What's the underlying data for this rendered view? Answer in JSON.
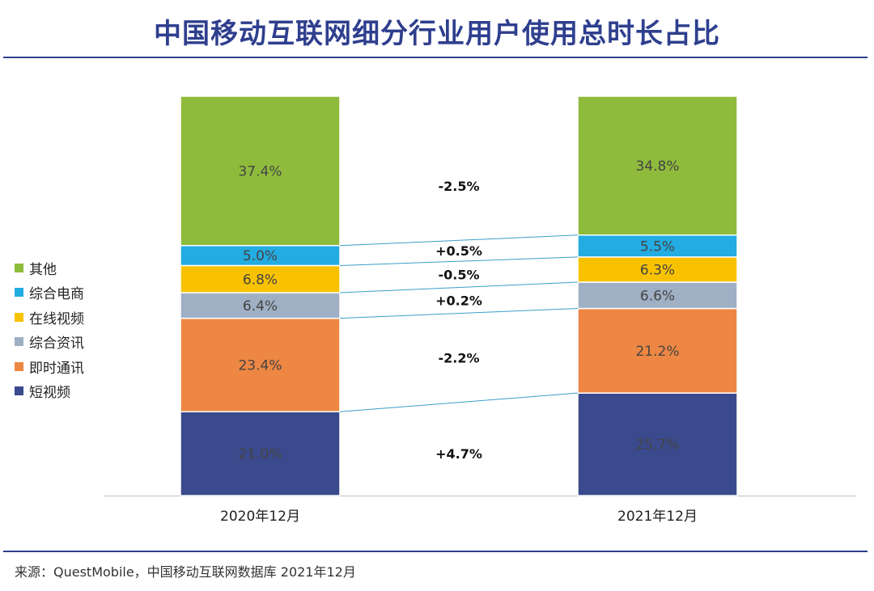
{
  "title": "中国移动互联网细分行业用户使用总时长占比",
  "source": "来源：QuestMobile，中国移动互联网数据库  2021年12月",
  "legend_order": [
    "其他",
    "综合电商",
    "在线视频",
    "综合资讯",
    "即时通讯",
    "短视频"
  ],
  "chart_data": {
    "type": "bar",
    "stacked": true,
    "percent_stacked": true,
    "categories": [
      "2020年12月",
      "2021年12月"
    ],
    "series": [
      {
        "name": "短视频",
        "values": [
          21.0,
          25.7
        ],
        "labels": [
          "21.0%",
          "25.7%"
        ],
        "color": "#3b4a8c",
        "change": "+4.7%"
      },
      {
        "name": "即时通讯",
        "values": [
          23.4,
          21.2
        ],
        "labels": [
          "23.4%",
          "21.2%"
        ],
        "color": "#ed8743",
        "change": "-2.2%"
      },
      {
        "name": "综合资讯",
        "values": [
          6.4,
          6.6
        ],
        "labels": [
          "6.4%",
          "6.6%"
        ],
        "color": "#9fafc4",
        "change": "+0.2%"
      },
      {
        "name": "在线视频",
        "values": [
          6.8,
          6.3
        ],
        "labels": [
          "6.8%",
          "6.3%"
        ],
        "color": "#f8c200",
        "change": "-0.5%"
      },
      {
        "name": "综合电商",
        "values": [
          5.0,
          5.5
        ],
        "labels": [
          "5.0%",
          "5.5%"
        ],
        "color": "#22ace2",
        "change": "+0.5%"
      },
      {
        "name": "其他",
        "values": [
          37.4,
          34.8
        ],
        "labels": [
          "37.4%",
          "34.8%"
        ],
        "color": "#8fbb3c",
        "change": "-2.5%"
      }
    ],
    "ylim": [
      0,
      100
    ],
    "legend_position": "left",
    "grid": false
  }
}
